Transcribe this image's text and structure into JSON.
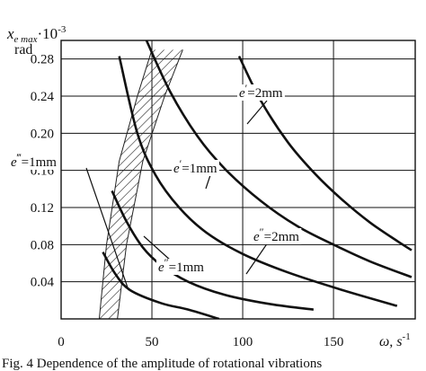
{
  "chart_data": {
    "type": "line",
    "ylabel_top": "x",
    "ylabel_sub": "e max",
    "ylabel_mult": "·10",
    "ylabel_exp": "-3",
    "yunit": "rad",
    "xlabel": "ω, s",
    "xlabel_exp": "-1",
    "xlim": [
      0,
      195
    ],
    "ylim": [
      0,
      0.3
    ],
    "x_ticks": [
      0,
      50,
      100,
      150
    ],
    "y_ticks": [
      0.04,
      0.08,
      0.12,
      0.16,
      0.2,
      0.24,
      0.28
    ],
    "y_tick_labels": [
      "0.04",
      "0.08",
      "0.12",
      "0.16",
      "0.20",
      "0.24",
      "0.28"
    ],
    "x_tick_labels": [
      "0",
      "50",
      "100",
      "150"
    ],
    "grid": true,
    "series": [
      {
        "points": [
          [
            23,
            0.072
          ],
          [
            30,
            0.048
          ],
          [
            38,
            0.031
          ],
          [
            55,
            0.017
          ],
          [
            70,
            0.01
          ],
          [
            87,
            0.0
          ]
        ]
      },
      {
        "points": [
          [
            28,
            0.138
          ],
          [
            36,
            0.105
          ],
          [
            45,
            0.077
          ],
          [
            55,
            0.058
          ],
          [
            70,
            0.04
          ],
          [
            90,
            0.026
          ],
          [
            115,
            0.016
          ],
          [
            139,
            0.01
          ]
        ]
      },
      {
        "points": [
          [
            32,
            0.283
          ],
          [
            42,
            0.2
          ],
          [
            52,
            0.155
          ],
          [
            65,
            0.12
          ],
          [
            80,
            0.093
          ],
          [
            100,
            0.07
          ],
          [
            125,
            0.05
          ],
          [
            155,
            0.031
          ],
          [
            185,
            0.014
          ]
        ]
      },
      {
        "points": [
          [
            47,
            0.3
          ],
          [
            60,
            0.245
          ],
          [
            75,
            0.197
          ],
          [
            90,
            0.162
          ],
          [
            110,
            0.127
          ],
          [
            130,
            0.1
          ],
          [
            150,
            0.08
          ],
          [
            170,
            0.062
          ],
          [
            193,
            0.045
          ]
        ]
      },
      {
        "points": [
          [
            98,
            0.283
          ],
          [
            110,
            0.235
          ],
          [
            125,
            0.19
          ],
          [
            140,
            0.156
          ],
          [
            155,
            0.128
          ],
          [
            170,
            0.104
          ],
          [
            185,
            0.084
          ],
          [
            193,
            0.074
          ]
        ]
      }
    ],
    "annotations": [
      {
        "text": "e",
        "primes": "‴",
        "rest": "=1mm"
      },
      {
        "text": "e",
        "primes": "″",
        "rest": "=1mm"
      },
      {
        "text": "e",
        "primes": "′",
        "rest": "=1mm"
      },
      {
        "text": "e",
        "primes": "″",
        "rest": "=2mm"
      },
      {
        "text": "e",
        "primes": "′",
        "rest": "=2mm"
      }
    ],
    "hatched_region": {
      "left": [
        [
          21,
          0.0
        ],
        [
          25,
          0.08
        ],
        [
          32,
          0.17
        ],
        [
          42,
          0.24
        ],
        [
          50,
          0.29
        ]
      ],
      "right": [
        [
          31,
          0.0
        ],
        [
          36,
          0.08
        ],
        [
          45,
          0.17
        ],
        [
          57,
          0.24
        ],
        [
          67,
          0.29
        ]
      ]
    }
  },
  "caption": "Fig. 4 Dependence of the amplitude of rotational vibrations"
}
